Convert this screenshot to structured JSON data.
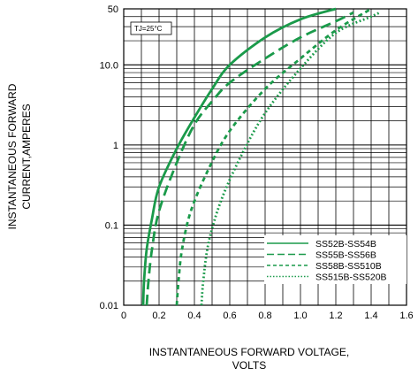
{
  "chart_data": {
    "type": "line",
    "y_scale": "log",
    "xlim": [
      0,
      1.6
    ],
    "ylim": [
      0.01,
      50
    ],
    "x_ticks": [
      0,
      0.2,
      0.4,
      0.6,
      0.8,
      1.0,
      1.2,
      1.4,
      1.6
    ],
    "x_tick_labels": [
      "0",
      "0.2",
      "0.4",
      "0.6",
      "0.8",
      "1.0",
      "1.2",
      "1.4",
      "1.6"
    ],
    "y_ticks": [
      0.01,
      0.1,
      1,
      10,
      50
    ],
    "y_tick_labels": [
      "0.01",
      "0.1",
      "1",
      "10.0",
      "50"
    ],
    "xlabel_line1": "INSTANTANEOUS FORWARD VOLTAGE,",
    "xlabel_line2": "VOLTS",
    "ylabel_line1": "INSTANTANEOUS FORWARD",
    "ylabel_line2": "CURRENT,AMPERES",
    "annotation": "TJ=25°C",
    "grid": true,
    "legend_position": "bottom-right",
    "color": "#1a9a4a",
    "series": [
      {
        "name": "SS52B-SS54B",
        "style": "solid",
        "points": [
          [
            0.11,
            0.01
          ],
          [
            0.115,
            0.02
          ],
          [
            0.13,
            0.05
          ],
          [
            0.16,
            0.12
          ],
          [
            0.2,
            0.3
          ],
          [
            0.3,
            0.9
          ],
          [
            0.4,
            2.2
          ],
          [
            0.5,
            5
          ],
          [
            0.6,
            10
          ],
          [
            0.8,
            22
          ],
          [
            1.0,
            37
          ],
          [
            1.2,
            50
          ]
        ]
      },
      {
        "name": "SS55B-SS56B",
        "style": "dashed",
        "points": [
          [
            0.13,
            0.01
          ],
          [
            0.14,
            0.02
          ],
          [
            0.16,
            0.05
          ],
          [
            0.2,
            0.15
          ],
          [
            0.3,
            0.6
          ],
          [
            0.4,
            1.8
          ],
          [
            0.5,
            3.5
          ],
          [
            0.6,
            6
          ],
          [
            0.8,
            12
          ],
          [
            1.0,
            22
          ],
          [
            1.2,
            35
          ],
          [
            1.3,
            45
          ]
        ]
      },
      {
        "name": "SS58B-SS510B",
        "style": "fine-dashed",
        "points": [
          [
            0.3,
            0.01
          ],
          [
            0.31,
            0.02
          ],
          [
            0.33,
            0.05
          ],
          [
            0.38,
            0.15
          ],
          [
            0.48,
            0.5
          ],
          [
            0.6,
            1.5
          ],
          [
            0.8,
            5
          ],
          [
            1.0,
            12
          ],
          [
            1.2,
            27
          ],
          [
            1.4,
            50
          ]
        ]
      },
      {
        "name": "SS515B-SS520B",
        "style": "dotted",
        "points": [
          [
            0.44,
            0.01
          ],
          [
            0.45,
            0.02
          ],
          [
            0.48,
            0.06
          ],
          [
            0.55,
            0.2
          ],
          [
            0.66,
            0.7
          ],
          [
            0.8,
            2.5
          ],
          [
            1.0,
            9
          ],
          [
            1.2,
            25
          ],
          [
            1.4,
            40
          ],
          [
            1.45,
            45
          ]
        ]
      }
    ]
  }
}
